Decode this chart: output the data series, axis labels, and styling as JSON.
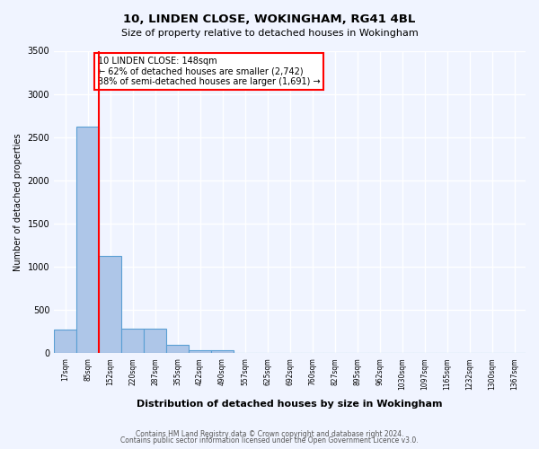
{
  "title1": "10, LINDEN CLOSE, WOKINGHAM, RG41 4BL",
  "title2": "Size of property relative to detached houses in Wokingham",
  "xlabel": "Distribution of detached houses by size in Wokingham",
  "ylabel": "Number of detached properties",
  "bin_labels": [
    "17sqm",
    "85sqm",
    "152sqm",
    "220sqm",
    "287sqm",
    "355sqm",
    "422sqm",
    "490sqm",
    "557sqm",
    "625sqm",
    "692sqm",
    "760sqm",
    "827sqm",
    "895sqm",
    "962sqm",
    "1030sqm",
    "1097sqm",
    "1165sqm",
    "1232sqm",
    "1300sqm",
    "1367sqm"
  ],
  "bar_values": [
    275,
    2625,
    1125,
    285,
    285,
    100,
    40,
    40,
    0,
    0,
    0,
    0,
    0,
    0,
    0,
    0,
    0,
    0,
    0,
    0,
    0
  ],
  "bar_color": "#aec6e8",
  "bar_edge_color": "#5a9fd4",
  "ylim": [
    0,
    3500
  ],
  "yticks": [
    0,
    500,
    1000,
    1500,
    2000,
    2500,
    3000,
    3500
  ],
  "red_line_x": 1.5,
  "annotation_text": "10 LINDEN CLOSE: 148sqm\n← 62% of detached houses are smaller (2,742)\n38% of semi-detached houses are larger (1,691) →",
  "annotation_box_color": "white",
  "annotation_box_edge_color": "red",
  "footer1": "Contains HM Land Registry data © Crown copyright and database right 2024.",
  "footer2": "Contains public sector information licensed under the Open Government Licence v3.0.",
  "bg_color": "#f0f4ff",
  "grid_color": "white"
}
